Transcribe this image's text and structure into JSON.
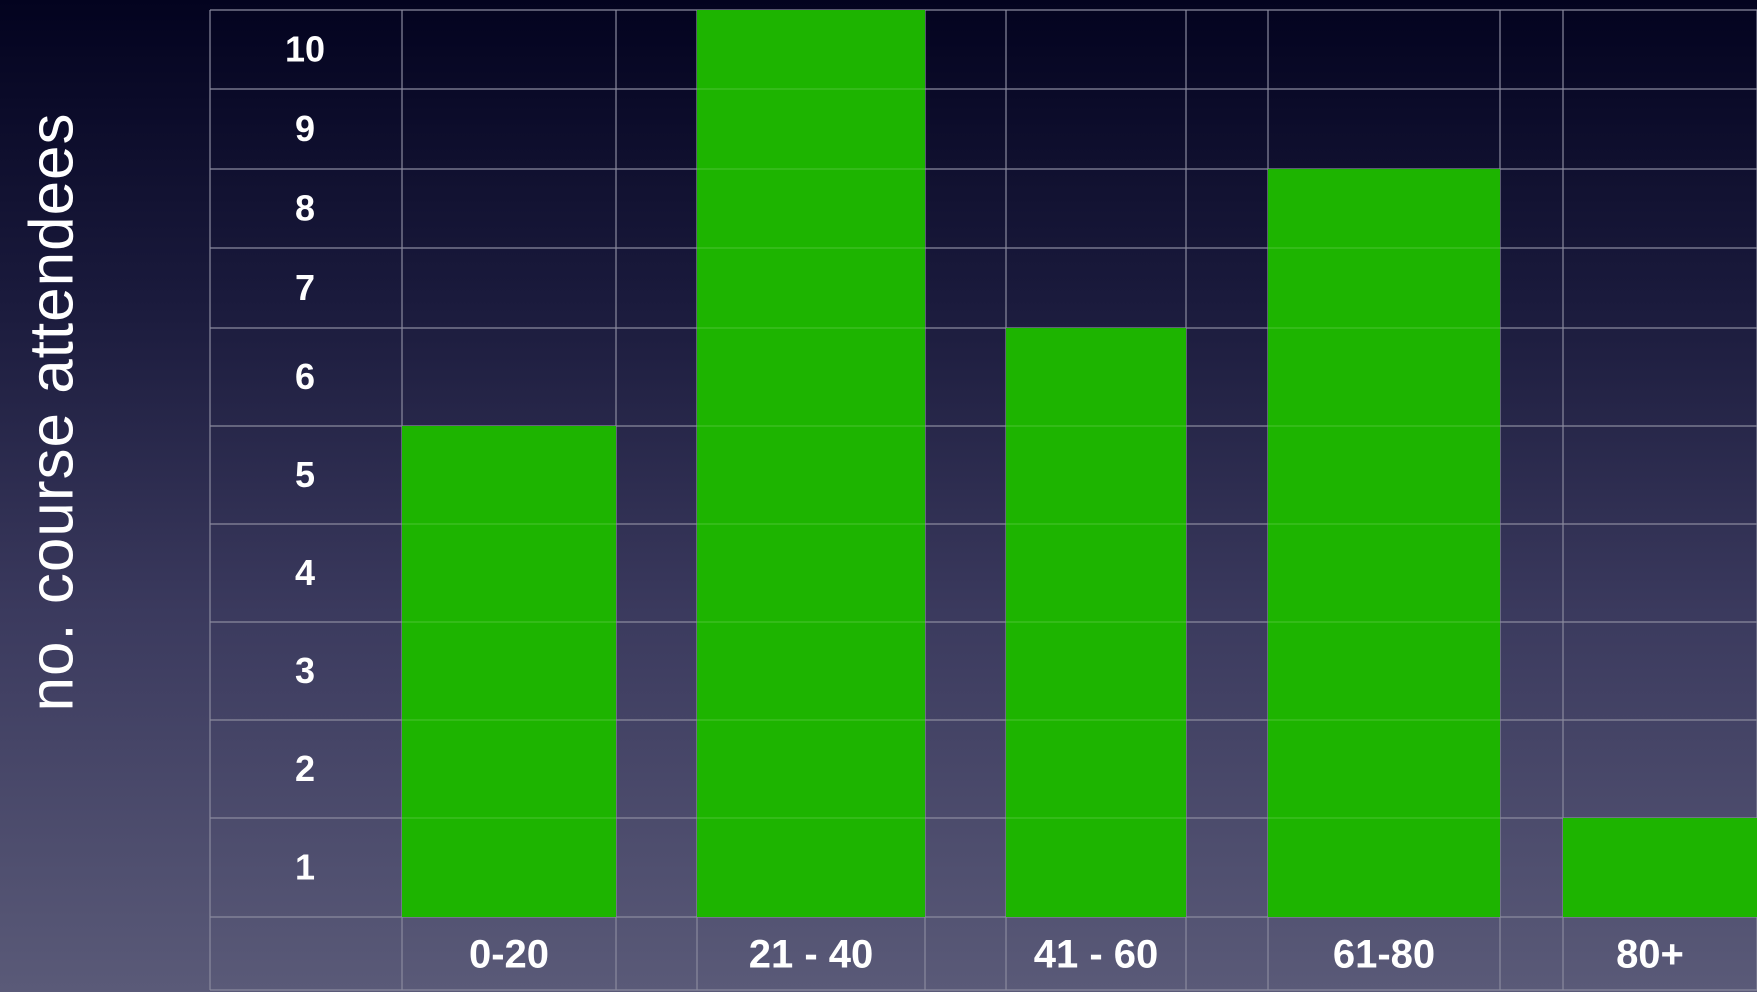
{
  "chart_data": {
    "type": "bar",
    "title": "",
    "xlabel": "",
    "ylabel": "no. course attendees",
    "categories": [
      "0-20",
      "21 - 40",
      "41 - 60",
      "61-80",
      "80+"
    ],
    "values": [
      5,
      10,
      6,
      8,
      1
    ],
    "y_ticks": [
      "1",
      "2",
      "3",
      "4",
      "5",
      "6",
      "7",
      "8",
      "9",
      "10"
    ],
    "ylim": [
      0,
      10
    ],
    "grid": true,
    "legend": "none",
    "colors": {
      "bar": "#1db400",
      "grid": "#8a8a9e",
      "text": "#ffffff"
    }
  }
}
